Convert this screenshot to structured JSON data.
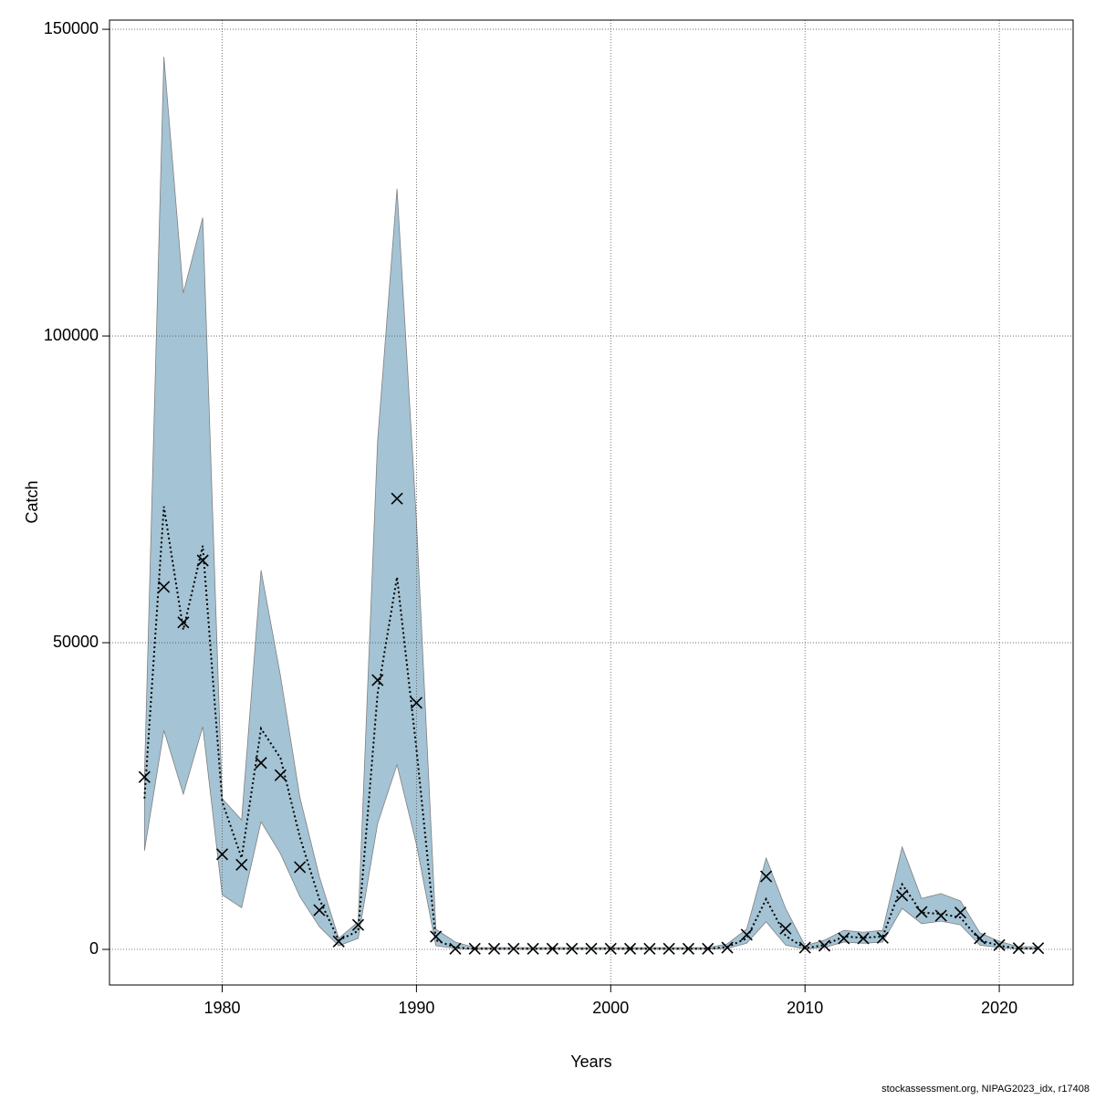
{
  "chart_data": {
    "type": "line",
    "xlabel": "Years",
    "ylabel": "Catch",
    "footer": "stockassessment.org, NIPAG2023_idx, r17408",
    "x": [
      1976,
      1977,
      1978,
      1979,
      1980,
      1981,
      1982,
      1983,
      1984,
      1985,
      1986,
      1987,
      1988,
      1989,
      1990,
      1991,
      1992,
      1993,
      1994,
      1995,
      1996,
      1997,
      1998,
      1999,
      2000,
      2001,
      2002,
      2003,
      2004,
      2005,
      2006,
      2007,
      2008,
      2009,
      2010,
      2011,
      2012,
      2013,
      2014,
      2015,
      2016,
      2017,
      2018,
      2019,
      2020,
      2021,
      2022
    ],
    "band": {
      "color": "#a4c3d4",
      "edge": "#808080",
      "upper": [
        28300,
        145500,
        107000,
        119300,
        24600,
        21100,
        61800,
        44600,
        24800,
        11900,
        1800,
        4500,
        82900,
        124000,
        69900,
        3300,
        1200,
        300,
        300,
        300,
        300,
        300,
        300,
        300,
        300,
        300,
        300,
        300,
        300,
        300,
        900,
        3300,
        14900,
        6700,
        600,
        1500,
        3100,
        2800,
        3100,
        16700,
        8300,
        9100,
        7900,
        2700,
        1300,
        450,
        450
      ],
      "lower": [
        16100,
        35700,
        25300,
        36300,
        8900,
        6800,
        20800,
        15600,
        8600,
        3700,
        600,
        1800,
        20500,
        30100,
        17100,
        600,
        150,
        50,
        50,
        50,
        50,
        50,
        50,
        50,
        50,
        50,
        50,
        50,
        50,
        50,
        150,
        1000,
        4500,
        700,
        50,
        300,
        1200,
        1000,
        1200,
        6700,
        4200,
        4600,
        4000,
        700,
        300,
        50,
        50
      ]
    },
    "series": [
      {
        "color": "#000000",
        "marker": "x",
        "values": [
          28100,
          59100,
          53300,
          63400,
          15500,
          13800,
          30400,
          28400,
          13400,
          6400,
          1300,
          4000,
          43900,
          73500,
          40200,
          2100,
          100,
          100,
          100,
          100,
          100,
          100,
          100,
          100,
          100,
          100,
          100,
          100,
          100,
          100,
          300,
          2400,
          11900,
          3400,
          300,
          600,
          1800,
          1800,
          1900,
          8800,
          6100,
          5500,
          6000,
          1800,
          700,
          200,
          200
        ]
      },
      {
        "color": "#000000",
        "linestyle": "dotted",
        "values": [
          24600,
          72200,
          52100,
          65800,
          24100,
          14900,
          36000,
          31200,
          18300,
          8200,
          1500,
          3000,
          41700,
          60700,
          32700,
          1500,
          300,
          100,
          100,
          100,
          100,
          100,
          100,
          100,
          100,
          100,
          100,
          100,
          100,
          100,
          400,
          1800,
          8200,
          2200,
          200,
          700,
          2100,
          1900,
          2100,
          10600,
          6000,
          5800,
          5200,
          1500,
          600,
          150,
          150
        ]
      }
    ],
    "xlim": [
      1974.2,
      2023.8
    ],
    "xticks": [
      1980,
      1990,
      2000,
      2010,
      2020
    ],
    "ylim": [
      -5800,
      151500
    ],
    "yticks": [
      0,
      50000,
      100000,
      150000
    ],
    "grid": true
  }
}
